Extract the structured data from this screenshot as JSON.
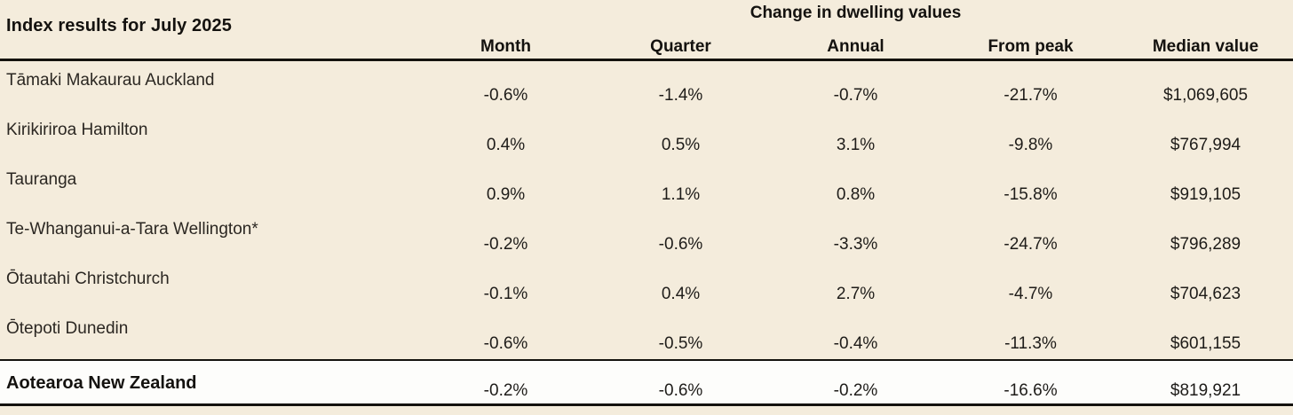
{
  "page": {
    "background_color": "#f4ecdc",
    "rule_color": "#14120e",
    "highlight_row_background": "#fdfdfb",
    "text_color": "#1e1c19"
  },
  "chart_data": {
    "type": "table",
    "title": "Index results for July 2025",
    "group_header": "Change in dwelling values",
    "columns": [
      "Month",
      "Quarter",
      "Annual",
      "From peak",
      "Median value"
    ],
    "rows": [
      {
        "label": "Tāmaki Makaurau Auckland",
        "values": [
          "-0.6%",
          "-1.4%",
          "-0.7%",
          "-21.7%",
          "$1,069,605"
        ]
      },
      {
        "label": "Kirikiriroa Hamilton",
        "values": [
          "0.4%",
          "0.5%",
          "3.1%",
          "-9.8%",
          "$767,994"
        ]
      },
      {
        "label": "Tauranga",
        "values": [
          "0.9%",
          "1.1%",
          "0.8%",
          "-15.8%",
          "$919,105"
        ]
      },
      {
        "label": "Te-Whanganui-a-Tara Wellington*",
        "values": [
          "-0.2%",
          "-0.6%",
          "-3.3%",
          "-24.7%",
          "$796,289"
        ]
      },
      {
        "label": "Ōtautahi Christchurch",
        "values": [
          "-0.1%",
          "0.4%",
          "2.7%",
          "-4.7%",
          "$704,623"
        ]
      },
      {
        "label": "Ōtepoti Dunedin",
        "values": [
          "-0.6%",
          "-0.5%",
          "-0.4%",
          "-11.3%",
          "$601,155"
        ]
      }
    ],
    "total_row": {
      "label": "Aotearoa New Zealand",
      "values": [
        "-0.2%",
        "-0.6%",
        "-0.2%",
        "-16.6%",
        "$819,921"
      ]
    }
  }
}
